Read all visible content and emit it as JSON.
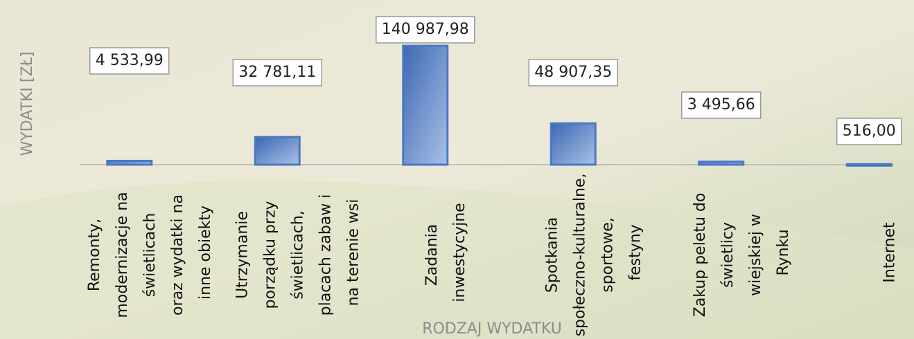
{
  "chart_data": {
    "type": "bar",
    "x_label": "RODZAJ WYDATKU",
    "y_label": "WYDATKI [ZŁ]",
    "categories": [
      "Remonty, modernizacje na świetlicach oraz wydatki na inne obiekty",
      "Utrzymanie porządku przy świetlicach, placach zabaw i na terenie wsi",
      "Zadania inwestycyjne",
      "Spotkania społeczno-kulturalne, sportowe, festyny",
      "Zakup peletu do świetlicy wiejskiej w Rynku",
      "Internet"
    ],
    "values": [
      4533.99,
      32781.11,
      140987.98,
      48907.35,
      3495.66,
      516.0
    ],
    "value_labels": [
      "4 533,99",
      "32 781,11",
      "140 987,98",
      "48 907,35",
      "3 495,66",
      "516,00"
    ],
    "color": "#4a78c4",
    "ylim": [
      0,
      160000
    ]
  }
}
